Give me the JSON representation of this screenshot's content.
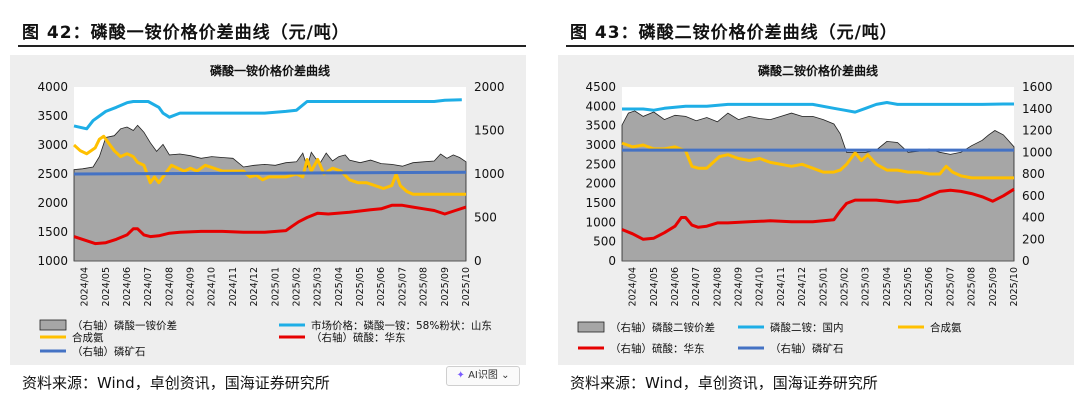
{
  "figures": [
    {
      "figure_title": "图 42：磷酸一铵价格价差曲线（元/吨）",
      "source": "资料来源：Wind，卓创资讯，国海证券研究所",
      "chart_data": {
        "type": "area+line",
        "title": "磷酸一铵价格价差曲线",
        "categories": [
          "2024/04",
          "2024/05",
          "2024/06",
          "2024/07",
          "2024/08",
          "2024/09",
          "2024/10",
          "2024/11",
          "2024/12",
          "2025/01",
          "2025/02",
          "2025/03",
          "2025/04",
          "2025/05",
          "2025/06",
          "2025/07",
          "2025/08",
          "2025/09",
          "2025/10"
        ],
        "x_range": [
          0,
          18.5
        ],
        "left_axis": {
          "min": 1000,
          "max": 4000,
          "ticks": [
            1000,
            1500,
            2000,
            2500,
            3000,
            3500,
            4000
          ]
        },
        "right_axis": {
          "min": 0,
          "max": 2000,
          "ticks": [
            0,
            500,
            1000,
            1500,
            2000
          ]
        },
        "series": [
          {
            "name": "（右轴）磷酸一铵价差",
            "kind": "area",
            "axis": "right",
            "color": "#a6a6a6",
            "x": [
              0,
              0.4,
              0.9,
              1.2,
              1.5,
              1.9,
              2.2,
              2.5,
              2.8,
              3.0,
              3.3,
              3.6,
              3.9,
              4.2,
              4.5,
              5.0,
              5.5,
              6.0,
              6.5,
              7.0,
              7.5,
              8.0,
              8.5,
              9.0,
              9.5,
              10.0,
              10.5,
              10.8,
              11.0,
              11.2,
              11.4,
              11.6,
              11.9,
              12.2,
              12.5,
              12.8,
              13.0,
              13.5,
              14.0,
              14.5,
              15.0,
              15.5,
              16.0,
              16.5,
              17.0,
              17.3,
              17.6,
              17.9,
              18.2,
              18.5
            ],
            "values": [
              1050,
              1060,
              1080,
              1200,
              1420,
              1440,
              1520,
              1540,
              1500,
              1560,
              1480,
              1360,
              1260,
              1340,
              1220,
              1230,
              1210,
              1180,
              1200,
              1190,
              1180,
              1080,
              1100,
              1110,
              1100,
              1130,
              1140,
              1240,
              1080,
              1250,
              1180,
              1120,
              1240,
              1150,
              1200,
              1220,
              1160,
              1130,
              1160,
              1120,
              1110,
              1090,
              1130,
              1140,
              1150,
              1230,
              1180,
              1220,
              1190,
              1140
            ]
          },
          {
            "name": "市场价格：磷酸一铵：58%粉状：山东",
            "kind": "line",
            "axis": "left",
            "color": "#1eaee6",
            "x": [
              0,
              0.6,
              0.9,
              1.2,
              1.5,
              2.0,
              2.5,
              2.8,
              3.5,
              4.0,
              4.2,
              4.5,
              5.0,
              6.0,
              7.0,
              8.0,
              9.0,
              10.0,
              10.5,
              11.0,
              12.0,
              13.0,
              14.0,
              15.0,
              16.0,
              17.0,
              17.5,
              18.3
            ],
            "values": [
              3330,
              3280,
              3420,
              3500,
              3580,
              3650,
              3730,
              3750,
              3750,
              3650,
              3550,
              3480,
              3550,
              3550,
              3550,
              3550,
              3550,
              3580,
              3600,
              3750,
              3750,
              3750,
              3750,
              3750,
              3750,
              3750,
              3770,
              3780
            ]
          },
          {
            "name": "合成氨",
            "kind": "line",
            "axis": "left",
            "color": "#ffc000",
            "x": [
              0,
              0.3,
              0.6,
              1.0,
              1.2,
              1.4,
              1.6,
              1.9,
              2.2,
              2.5,
              2.8,
              3.0,
              3.3,
              3.6,
              3.8,
              4.0,
              4.3,
              4.6,
              4.9,
              5.2,
              5.5,
              5.8,
              6.2,
              6.6,
              7.0,
              7.5,
              8.0,
              8.3,
              8.6,
              8.9,
              9.2,
              9.5,
              10.0,
              10.5,
              10.8,
              11.0,
              11.2,
              11.5,
              11.8,
              12.2,
              12.6,
              13.0,
              13.4,
              13.8,
              14.2,
              14.6,
              15.0,
              15.2,
              15.4,
              15.7,
              16.0,
              16.5,
              17.0,
              17.5,
              18.0,
              18.5
            ],
            "values": [
              3000,
              2900,
              2850,
              2950,
              3100,
              3150,
              3050,
              2900,
              2800,
              2850,
              2800,
              2700,
              2650,
              2350,
              2450,
              2350,
              2500,
              2650,
              2600,
              2550,
              2600,
              2550,
              2650,
              2600,
              2550,
              2550,
              2550,
              2450,
              2480,
              2400,
              2450,
              2450,
              2450,
              2500,
              2450,
              2750,
              2550,
              2750,
              2500,
              2600,
              2550,
              2400,
              2350,
              2350,
              2300,
              2250,
              2300,
              2500,
              2300,
              2200,
              2150,
              2150,
              2150,
              2150,
              2150,
              2150
            ]
          },
          {
            "name": "（右轴）硫酸：华东",
            "kind": "line",
            "axis": "right",
            "color": "#e60000",
            "x": [
              0,
              0.5,
              1.0,
              1.5,
              2.0,
              2.5,
              2.8,
              3.0,
              3.3,
              3.6,
              4.0,
              4.5,
              5.0,
              6.0,
              7.0,
              8.0,
              9.0,
              10.0,
              10.3,
              10.6,
              11.0,
              11.5,
              12.0,
              13.0,
              14.0,
              14.5,
              15.0,
              15.5,
              16.0,
              16.5,
              17.0,
              17.5,
              18.0,
              18.5
            ],
            "values": [
              280,
              240,
              200,
              210,
              250,
              300,
              370,
              370,
              300,
              280,
              290,
              320,
              330,
              340,
              340,
              330,
              330,
              350,
              400,
              450,
              500,
              550,
              540,
              560,
              590,
              600,
              640,
              640,
              620,
              600,
              580,
              540,
              580,
              620
            ]
          },
          {
            "name": "（右轴）磷矿石",
            "kind": "line",
            "axis": "right",
            "color": "#4472c4",
            "x": [
              0,
              18.5
            ],
            "values": [
              1000,
              1020
            ]
          }
        ]
      },
      "legend": [
        {
          "label": "（右轴）磷酸一铵价差",
          "color": "#a6a6a6",
          "kind": "box"
        },
        {
          "label": "市场价格：磷酸一铵：58%粉状：山东",
          "color": "#1eaee6",
          "kind": "line"
        },
        {
          "label": "合成氨",
          "color": "#ffc000",
          "kind": "line"
        },
        {
          "label": "（右轴）硫酸：华东",
          "color": "#e60000",
          "kind": "line"
        },
        {
          "label": "（右轴）磷矿石",
          "color": "#4472c4",
          "kind": "line"
        }
      ]
    },
    {
      "figure_title": "图 43：磷酸二铵价格价差曲线（元/吨）",
      "source": "资料来源：Wind，卓创资讯，国海证券研究所",
      "chart_data": {
        "type": "area+line",
        "title": "磷酸二铵价格价差曲线",
        "categories": [
          "2024/04",
          "2024/05",
          "2024/06",
          "2024/07",
          "2024/08",
          "2024/09",
          "2024/10",
          "2024/11",
          "2024/12",
          "2025/01",
          "2025/02",
          "2025/03",
          "2025/04",
          "2025/05",
          "2025/06",
          "2025/07",
          "2025/08",
          "2025/09",
          "2025/10"
        ],
        "x_range": [
          0,
          18.5
        ],
        "left_axis": {
          "min": 0,
          "max": 4500,
          "ticks": [
            0,
            500,
            1000,
            1500,
            2000,
            2500,
            3000,
            3500,
            4000,
            4500
          ]
        },
        "right_axis": {
          "min": 0,
          "max": 1600,
          "ticks": [
            0,
            200,
            400,
            600,
            800,
            1000,
            1200,
            1400,
            1600
          ]
        },
        "series": [
          {
            "name": "（右轴）磷酸二铵价差",
            "kind": "area",
            "axis": "right",
            "color": "#a6a6a6",
            "x": [
              0,
              0.3,
              0.6,
              1.0,
              1.5,
              2.0,
              2.5,
              3.0,
              3.5,
              4.0,
              4.5,
              5.0,
              5.5,
              6.0,
              6.5,
              7.0,
              7.5,
              8.0,
              8.5,
              9.0,
              9.5,
              10.0,
              10.3,
              10.6,
              11.0,
              11.5,
              12.0,
              12.5,
              13.0,
              13.5,
              14.0,
              14.5,
              15.0,
              15.5,
              16.0,
              16.5,
              17.0,
              17.3,
              17.6,
              18.0,
              18.5
            ],
            "values": [
              1250,
              1360,
              1380,
              1330,
              1370,
              1300,
              1340,
              1330,
              1290,
              1320,
              1280,
              1360,
              1300,
              1330,
              1310,
              1300,
              1330,
              1360,
              1330,
              1330,
              1300,
              1260,
              1170,
              1000,
              1000,
              1000,
              1020,
              1100,
              1090,
              1000,
              1010,
              1030,
              1000,
              980,
              1000,
              1060,
              1110,
              1160,
              1200,
              1160,
              1050
            ]
          },
          {
            "name": "磷酸二铵：国内",
            "kind": "line",
            "axis": "left",
            "color": "#1eaee6",
            "x": [
              0,
              1.0,
              1.5,
              2.0,
              3.0,
              4.0,
              5.0,
              6.0,
              7.0,
              8.0,
              9.0,
              10.0,
              10.5,
              11.0,
              11.5,
              12.0,
              12.5,
              13.0,
              14.0,
              15.0,
              16.0,
              17.0,
              18.0,
              18.5
            ],
            "values": [
              3930,
              3930,
              3900,
              3950,
              4000,
              4000,
              4050,
              4050,
              4050,
              4050,
              4050,
              3950,
              3900,
              3850,
              3950,
              4050,
              4100,
              4050,
              4050,
              4050,
              4050,
              4050,
              4060,
              4060
            ]
          },
          {
            "name": "合成氨",
            "kind": "line",
            "axis": "left",
            "color": "#ffc000",
            "x": [
              0,
              0.5,
              1.0,
              1.5,
              2.0,
              2.5,
              3.0,
              3.3,
              3.6,
              4.0,
              4.3,
              4.6,
              5.0,
              5.5,
              6.0,
              6.5,
              7.0,
              7.5,
              8.0,
              8.5,
              9.0,
              9.5,
              10.0,
              10.3,
              10.6,
              11.0,
              11.3,
              11.6,
              12.0,
              12.5,
              13.0,
              13.5,
              14.0,
              14.5,
              15.0,
              15.3,
              15.6,
              16.0,
              16.5,
              17.0,
              17.5,
              18.0,
              18.5
            ],
            "values": [
              3050,
              2950,
              3000,
              2900,
              2900,
              2950,
              2850,
              2450,
              2400,
              2400,
              2550,
              2700,
              2750,
              2650,
              2600,
              2650,
              2550,
              2500,
              2450,
              2500,
              2400,
              2300,
              2300,
              2350,
              2500,
              2800,
              2600,
              2750,
              2500,
              2350,
              2350,
              2300,
              2300,
              2250,
              2250,
              2450,
              2300,
              2200,
              2150,
              2150,
              2150,
              2150,
              2150
            ]
          },
          {
            "name": "（右轴）硫酸：华东",
            "kind": "line",
            "axis": "right",
            "color": "#e60000",
            "x": [
              0,
              0.5,
              1.0,
              1.5,
              2.0,
              2.5,
              2.8,
              3.0,
              3.3,
              3.6,
              4.0,
              4.5,
              5.0,
              6.0,
              7.0,
              8.0,
              9.0,
              10.0,
              10.3,
              10.6,
              11.0,
              11.5,
              12.0,
              13.0,
              14.0,
              14.5,
              15.0,
              15.5,
              16.0,
              16.5,
              17.0,
              17.5,
              18.0,
              18.5
            ],
            "values": [
              290,
              250,
              200,
              210,
              260,
              320,
              400,
              400,
              330,
              310,
              320,
              350,
              350,
              360,
              370,
              360,
              360,
              380,
              460,
              530,
              560,
              560,
              560,
              540,
              560,
              600,
              640,
              650,
              640,
              620,
              590,
              550,
              600,
              660
            ]
          },
          {
            "name": "（右轴）磷矿石",
            "kind": "line",
            "axis": "right",
            "color": "#4472c4",
            "x": [
              0,
              18.5
            ],
            "values": [
              1020,
              1020
            ]
          }
        ]
      },
      "legend": [
        {
          "label": "（右轴）磷酸二铵价差",
          "color": "#a6a6a6",
          "kind": "box"
        },
        {
          "label": "磷酸二铵：国内",
          "color": "#1eaee6",
          "kind": "line"
        },
        {
          "label": "合成氨",
          "color": "#ffc000",
          "kind": "line"
        },
        {
          "label": "（右轴）硫酸：华东",
          "color": "#e60000",
          "kind": "line"
        },
        {
          "label": "（右轴）磷矿石",
          "color": "#4472c4",
          "kind": "line"
        }
      ]
    }
  ],
  "ai_badge": {
    "label": "AI识图",
    "icon": "sparkle-icon"
  }
}
